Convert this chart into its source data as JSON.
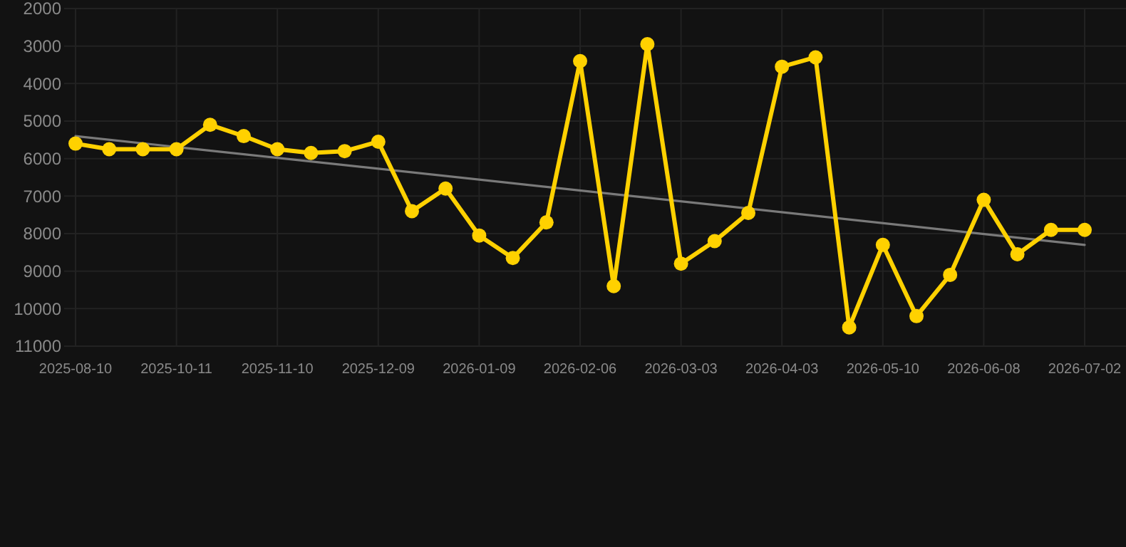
{
  "chart_data": {
    "type": "line",
    "categories": [
      "2025-08-10",
      null,
      null,
      "2025-10-11",
      null,
      null,
      "2025-11-10",
      null,
      null,
      "2025-12-09",
      null,
      null,
      "2026-01-09",
      null,
      null,
      "2026-02-06",
      null,
      null,
      "2026-03-03",
      null,
      null,
      "2026-04-03",
      null,
      null,
      "2026-05-10",
      null,
      null,
      "2026-06-08",
      null,
      null,
      "2026-07-02"
    ],
    "series": [
      {
        "color": "#ffd100",
        "marker": "circle",
        "values": [
          5600,
          5750,
          5750,
          5750,
          5100,
          5400,
          5750,
          5850,
          5800,
          5550,
          7400,
          6800,
          8050,
          8650,
          7700,
          3400,
          9400,
          2950,
          8800,
          8200,
          7450,
          3550,
          3300,
          10500,
          8300,
          10200,
          9100,
          7100,
          8550,
          7900,
          7900
        ]
      },
      {
        "type": "line",
        "color": "#7a7a7a",
        "marker": "none",
        "values": [
          5400,
          null,
          null,
          null,
          null,
          null,
          null,
          null,
          null,
          null,
          null,
          null,
          null,
          null,
          null,
          null,
          null,
          null,
          null,
          null,
          null,
          null,
          null,
          null,
          null,
          null,
          null,
          null,
          null,
          null,
          8300
        ]
      }
    ],
    "ylim": [
      11000,
      2000
    ],
    "yticks": [
      2000,
      3000,
      4000,
      5000,
      6000,
      7000,
      8000,
      9000,
      10000,
      11000
    ],
    "grid": true
  }
}
